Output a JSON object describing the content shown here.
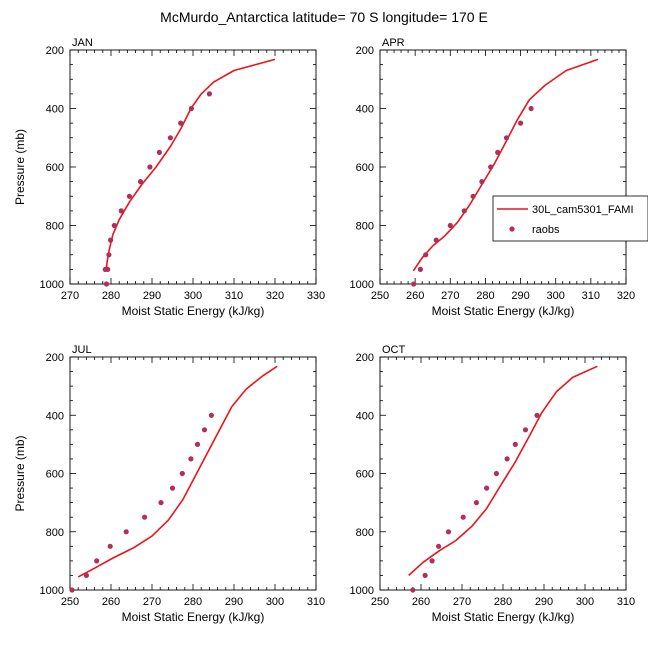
{
  "figure": {
    "title": "McMurdo_Antarctica  latitude= 70 S longitude= 170 E"
  },
  "legend": {
    "model_label": "30L_cam5301_FAMI",
    "obs_label": "raobs"
  },
  "colors": {
    "model_line": "#e8151b",
    "obs_marker": "#b0305a",
    "axis": "#000000"
  },
  "chart_data": [
    {
      "type": "line",
      "panel_title": "JAN",
      "xlabel": "Moist Static Energy (kJ/kg)",
      "ylabel": "Pressure (mb)",
      "xlim": [
        270,
        330
      ],
      "ylim": [
        1000,
        200
      ],
      "xticks": [
        270,
        280,
        290,
        300,
        310,
        320,
        330
      ],
      "yticks": [
        200,
        400,
        600,
        800,
        1000
      ],
      "series": [
        {
          "name": "30L_cam5301_FAMI",
          "style": "line",
          "x": [
            278.8,
            279.1,
            279.6,
            280.5,
            282.0,
            284.5,
            287.5,
            291.0,
            294.5,
            297.0,
            299.5,
            302.0,
            305.0,
            310.0,
            320.0
          ],
          "y": [
            955,
            920,
            880,
            830,
            780,
            720,
            660,
            600,
            530,
            470,
            400,
            350,
            310,
            270,
            232
          ]
        },
        {
          "name": "raobs",
          "style": "markers",
          "x": [
            278.9,
            279.2,
            279.5,
            279.9,
            280.8,
            282.5,
            284.5,
            287.2,
            289.5,
            291.8,
            294.5,
            297.0,
            299.6,
            304.0,
            278.6
          ],
          "y": [
            1000,
            950,
            900,
            850,
            800,
            750,
            700,
            650,
            600,
            550,
            500,
            450,
            400,
            350,
            950
          ]
        }
      ]
    },
    {
      "type": "line",
      "panel_title": "APR",
      "xlabel": "Moist Static Energy (kJ/kg)",
      "ylabel": "",
      "xlim": [
        250,
        320
      ],
      "ylim": [
        1000,
        200
      ],
      "xticks": [
        250,
        260,
        270,
        280,
        290,
        300,
        310,
        320
      ],
      "yticks": [
        200,
        400,
        600,
        800,
        1000
      ],
      "series": [
        {
          "name": "30L_cam5301_FAMI",
          "style": "line",
          "x": [
            259.5,
            262.0,
            265.0,
            268.5,
            272.0,
            275.5,
            279.0,
            282.5,
            286.0,
            289.0,
            292.5,
            297.0,
            303.0,
            312.0
          ],
          "y": [
            955,
            910,
            870,
            835,
            790,
            730,
            660,
            590,
            510,
            440,
            370,
            320,
            270,
            232
          ]
        },
        {
          "name": "raobs",
          "style": "markers",
          "x": [
            259.6,
            261.5,
            263.0,
            266.0,
            270.0,
            274.0,
            276.5,
            279.0,
            281.5,
            283.5,
            286.0,
            290.0,
            293.0
          ],
          "y": [
            1000,
            950,
            900,
            850,
            800,
            750,
            700,
            650,
            600,
            550,
            500,
            450,
            400
          ]
        }
      ]
    },
    {
      "type": "line",
      "panel_title": "JUL",
      "xlabel": "Moist Static Energy (kJ/kg)",
      "ylabel": "Pressure (mb)",
      "xlim": [
        250,
        310
      ],
      "ylim": [
        1000,
        200
      ],
      "xticks": [
        250,
        260,
        270,
        280,
        290,
        300,
        310
      ],
      "yticks": [
        200,
        400,
        600,
        800,
        1000
      ],
      "series": [
        {
          "name": "30L_cam5301_FAMI",
          "style": "line",
          "x": [
            252.0,
            256.0,
            260.5,
            265.5,
            270.0,
            274.0,
            277.5,
            280.5,
            283.5,
            286.5,
            289.5,
            293.0,
            297.0,
            300.5
          ],
          "y": [
            955,
            925,
            890,
            855,
            815,
            760,
            690,
            610,
            530,
            450,
            370,
            310,
            265,
            232
          ]
        },
        {
          "name": "raobs",
          "style": "markers",
          "x": [
            250.5,
            254.0,
            256.5,
            259.8,
            263.7,
            268.2,
            272.2,
            275.0,
            277.4,
            279.5,
            281.1,
            282.8,
            284.5
          ],
          "y": [
            1000,
            950,
            900,
            850,
            800,
            750,
            700,
            650,
            600,
            550,
            500,
            450,
            400
          ]
        }
      ]
    },
    {
      "type": "line",
      "panel_title": "OCT",
      "xlabel": "Moist Static Energy (kJ/kg)",
      "ylabel": "",
      "xlim": [
        250,
        310
      ],
      "ylim": [
        1000,
        200
      ],
      "xticks": [
        250,
        260,
        270,
        280,
        290,
        300,
        310
      ],
      "yticks": [
        200,
        400,
        600,
        800,
        1000
      ],
      "series": [
        {
          "name": "30L_cam5301_FAMI",
          "style": "line",
          "x": [
            257.0,
            260.5,
            264.5,
            268.5,
            272.5,
            276.0,
            279.5,
            283.0,
            286.5,
            289.5,
            293.0,
            297.0,
            303.0
          ],
          "y": [
            950,
            905,
            865,
            830,
            780,
            720,
            640,
            560,
            470,
            390,
            320,
            270,
            232
          ]
        },
        {
          "name": "raobs",
          "style": "markers",
          "x": [
            258.0,
            261.0,
            262.7,
            264.3,
            266.7,
            270.3,
            273.5,
            276.0,
            278.4,
            281.0,
            283.0,
            285.5,
            288.3
          ],
          "y": [
            1000,
            950,
            900,
            850,
            800,
            750,
            700,
            650,
            600,
            550,
            500,
            450,
            400
          ]
        }
      ]
    }
  ]
}
